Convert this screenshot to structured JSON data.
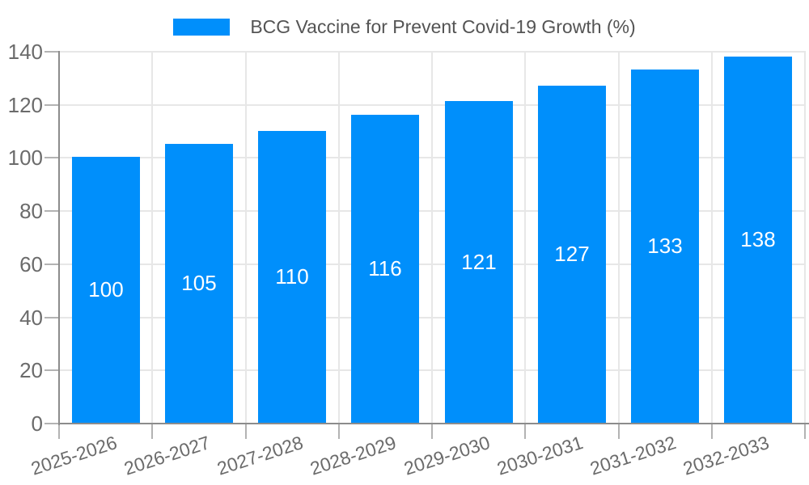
{
  "legend": {
    "label": "BCG Vaccine for Prevent Covid-19 Growth (%)"
  },
  "chart_data": {
    "type": "bar",
    "title": "BCG Vaccine for Prevent Covid-19 Growth (%)",
    "categories": [
      "2025-2026",
      "2026-2027",
      "2027-2028",
      "2028-2029",
      "2029-2030",
      "2030-2031",
      "2031-2032",
      "2032-2033"
    ],
    "values": [
      100,
      105,
      110,
      116,
      121,
      127,
      133,
      138
    ],
    "xlabel": "",
    "ylabel": "",
    "ylim": [
      0,
      140
    ],
    "yticks": [
      0,
      20,
      40,
      60,
      80,
      100,
      120,
      140
    ],
    "grid": true,
    "legend_position": "top",
    "value_labels_inside_bars": true
  },
  "colors": {
    "bar": "#008FFB",
    "grid": "#e7e7e7",
    "axis_line": "#8c8c8c",
    "tick": "#b3b3b3",
    "axis_label": "#6b6b6b",
    "legend_text": "#545454",
    "value_label": "#ffffff",
    "background": "#ffffff"
  }
}
